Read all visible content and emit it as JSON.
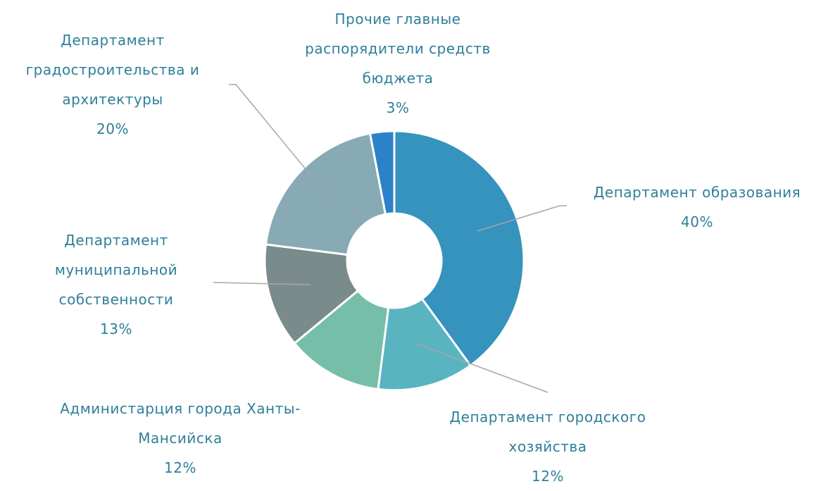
{
  "chart_data": {
    "type": "donut",
    "categories": [
      "Департамент образования",
      "Департамент городского хозяйства",
      "Администарция города Ханты-Мансийска",
      "Департамент муниципальной собственности",
      "Департамент градостроительства и архитектуры",
      "Прочие главные распорядители средств бюджета"
    ],
    "values": [
      40,
      12,
      12,
      13,
      20,
      3
    ],
    "value_labels": [
      "40%",
      "12%",
      "12%",
      "13%",
      "20%",
      "3%"
    ],
    "colors": [
      "#3593be",
      "#5ab4c0",
      "#76bea8",
      "#7a8b8c",
      "#87aab4",
      "#2b82c8"
    ]
  }
}
